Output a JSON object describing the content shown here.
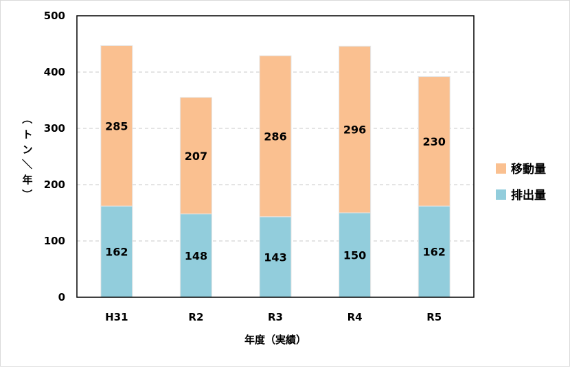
{
  "chart_data": {
    "type": "bar",
    "stacked": true,
    "categories": [
      "H31",
      "R2",
      "R3",
      "R4",
      "R5"
    ],
    "series": [
      {
        "name": "排出量",
        "values": [
          162,
          148,
          143,
          150,
          162
        ],
        "color": "#92cddc"
      },
      {
        "name": "移動量",
        "values": [
          285,
          207,
          286,
          296,
          230
        ],
        "color": "#fac090"
      }
    ],
    "xlabel": "年度（実績）",
    "ylabel": "（トン／年）",
    "ylim": [
      0,
      500
    ],
    "yticks": [
      0,
      100,
      200,
      300,
      400,
      500
    ],
    "grid": true,
    "legend_position": "right"
  }
}
